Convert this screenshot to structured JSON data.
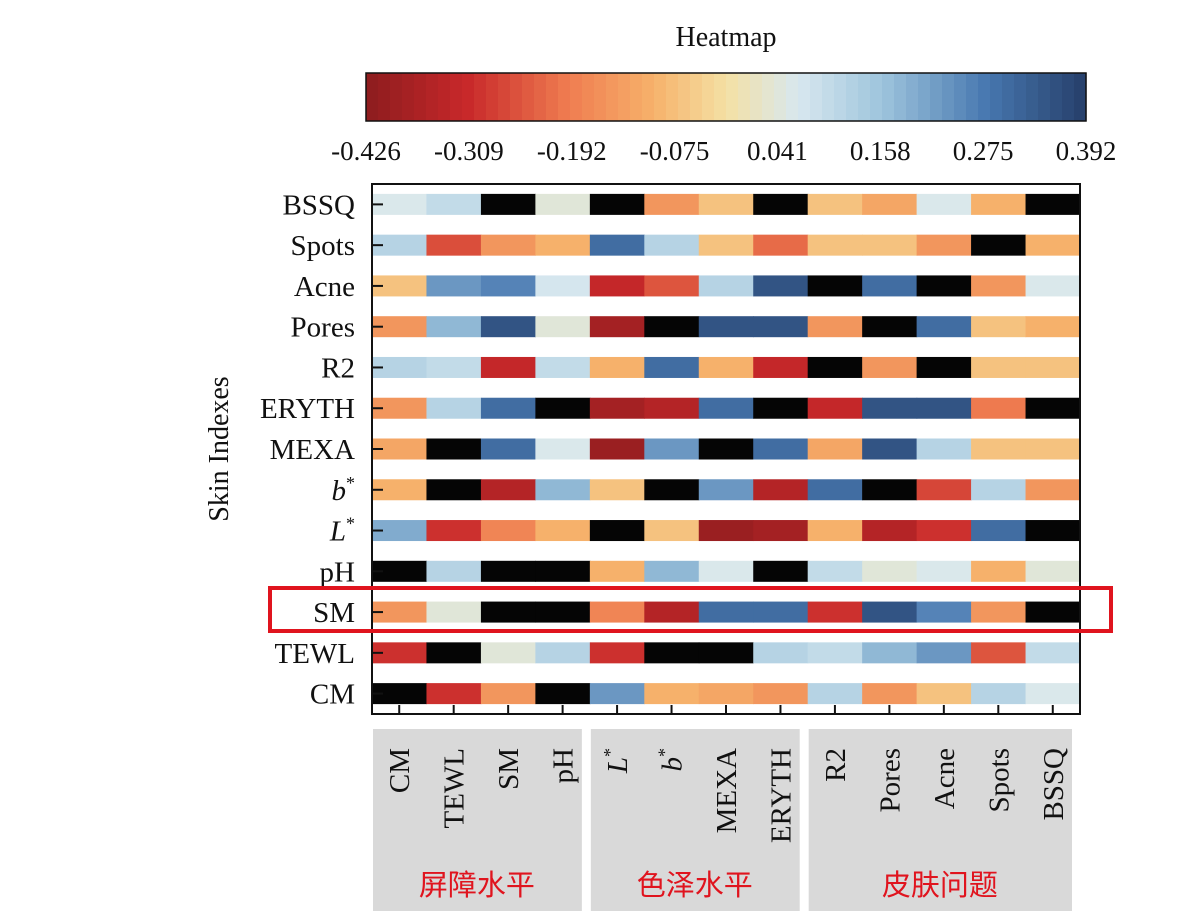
{
  "chart_data": {
    "type": "heatmap",
    "title": "Heatmap",
    "ylabel": "Skin Indexes",
    "colorbar": {
      "min": -0.426,
      "max": 0.392,
      "ticks": [
        "-0.426",
        "-0.309",
        "-0.192",
        "-0.075",
        "0.041",
        "0.158",
        "0.275",
        "0.392"
      ]
    },
    "rows": [
      {
        "label": "BSSQ",
        "italic": false,
        "sup": ""
      },
      {
        "label": "Spots",
        "italic": false,
        "sup": ""
      },
      {
        "label": "Acne",
        "italic": false,
        "sup": ""
      },
      {
        "label": "Pores",
        "italic": false,
        "sup": ""
      },
      {
        "label": "R2",
        "italic": false,
        "sup": ""
      },
      {
        "label": "ERYTH",
        "italic": false,
        "sup": ""
      },
      {
        "label": "MEXA",
        "italic": false,
        "sup": ""
      },
      {
        "label": "b",
        "italic": true,
        "sup": "*"
      },
      {
        "label": "L",
        "italic": true,
        "sup": "*"
      },
      {
        "label": "pH",
        "italic": false,
        "sup": ""
      },
      {
        "label": "SM",
        "italic": false,
        "sup": ""
      },
      {
        "label": "TEWL",
        "italic": false,
        "sup": ""
      },
      {
        "label": "CM",
        "italic": false,
        "sup": ""
      }
    ],
    "columns": [
      {
        "label": "CM",
        "italic": false,
        "sup": ""
      },
      {
        "label": "TEWL",
        "italic": false,
        "sup": ""
      },
      {
        "label": "SM",
        "italic": false,
        "sup": ""
      },
      {
        "label": "pH",
        "italic": false,
        "sup": ""
      },
      {
        "label": "L",
        "italic": true,
        "sup": "*"
      },
      {
        "label": "b",
        "italic": true,
        "sup": "*"
      },
      {
        "label": "MEXA",
        "italic": false,
        "sup": ""
      },
      {
        "label": "ERYTH",
        "italic": false,
        "sup": ""
      },
      {
        "label": "R2",
        "italic": false,
        "sup": ""
      },
      {
        "label": "Pores",
        "italic": false,
        "sup": ""
      },
      {
        "label": "Acne",
        "italic": false,
        "sup": ""
      },
      {
        "label": "Spots",
        "italic": false,
        "sup": ""
      },
      {
        "label": "BSSQ",
        "italic": false,
        "sup": ""
      }
    ],
    "groups": [
      {
        "label": "屏障水平",
        "start": 0,
        "end": 3
      },
      {
        "label": "色泽水平",
        "start": 4,
        "end": 7
      },
      {
        "label": "皮肤问题",
        "start": 8,
        "end": 12
      }
    ],
    "highlight_row": "SM",
    "values": [
      [
        0.06,
        0.1,
        null,
        0.04,
        null,
        -0.15,
        -0.07,
        null,
        -0.07,
        -0.12,
        0.06,
        -0.1,
        null
      ],
      [
        0.12,
        -0.26,
        -0.15,
        -0.1,
        0.3,
        0.12,
        -0.07,
        -0.22,
        -0.07,
        -0.07,
        -0.15,
        null,
        -0.1
      ],
      [
        -0.07,
        0.23,
        0.26,
        0.07,
        -0.32,
        -0.25,
        0.12,
        0.35,
        null,
        0.3,
        null,
        -0.15,
        0.06
      ],
      [
        -0.15,
        0.18,
        0.35,
        0.04,
        -0.38,
        null,
        0.35,
        0.35,
        -0.15,
        null,
        0.3,
        -0.07,
        -0.1
      ],
      [
        0.12,
        0.1,
        -0.32,
        0.1,
        -0.1,
        0.3,
        -0.1,
        -0.32,
        null,
        -0.15,
        null,
        -0.07,
        -0.07
      ],
      [
        -0.15,
        0.12,
        0.3,
        null,
        -0.38,
        -0.35,
        0.3,
        null,
        -0.32,
        0.35,
        0.35,
        -0.2,
        null
      ],
      [
        -0.12,
        null,
        0.3,
        0.06,
        -0.4,
        0.23,
        null,
        0.3,
        -0.12,
        0.35,
        0.12,
        -0.07,
        -0.07
      ],
      [
        -0.1,
        null,
        -0.35,
        0.18,
        -0.07,
        null,
        0.23,
        -0.35,
        0.3,
        null,
        -0.27,
        0.12,
        -0.15
      ],
      [
        0.2,
        -0.3,
        -0.18,
        -0.1,
        null,
        -0.07,
        -0.4,
        -0.38,
        -0.1,
        -0.35,
        -0.3,
        0.3,
        null
      ],
      [
        null,
        0.12,
        null,
        null,
        -0.1,
        0.18,
        0.06,
        null,
        0.1,
        0.04,
        0.06,
        -0.1,
        0.04
      ],
      [
        -0.15,
        0.04,
        null,
        null,
        -0.18,
        -0.35,
        0.3,
        0.3,
        -0.3,
        0.35,
        0.26,
        -0.15,
        null
      ],
      [
        -0.3,
        null,
        0.04,
        0.12,
        -0.3,
        null,
        null,
        0.12,
        0.1,
        0.18,
        0.23,
        -0.25,
        0.1
      ],
      [
        null,
        -0.3,
        -0.15,
        null,
        0.23,
        -0.1,
        -0.12,
        -0.15,
        0.12,
        -0.15,
        -0.07,
        0.12,
        0.06
      ]
    ]
  }
}
